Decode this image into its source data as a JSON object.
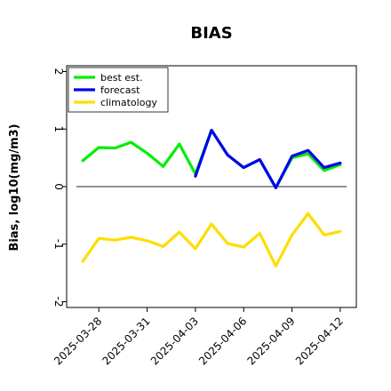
{
  "chart_data": {
    "type": "line",
    "title": "BIAS",
    "xlabel": "",
    "ylabel": "Bias, log10(mg/m3)",
    "ylim": [
      -2.1,
      2.1
    ],
    "yticks": [
      {
        "value": 2,
        "label": "2"
      },
      {
        "value": 1,
        "label": "1"
      },
      {
        "value": 0,
        "label": "0"
      },
      {
        "value": -1,
        "label": "-1"
      },
      {
        "value": -2,
        "label": "-2"
      }
    ],
    "xticks": [
      {
        "value": 1,
        "label": "2025-03-28",
        "color": "#000000"
      },
      {
        "value": 4,
        "label": "2025-03-31",
        "color": "#000000"
      },
      {
        "value": 7,
        "label": "2025-04-03",
        "color": "#228B22"
      },
      {
        "value": 10,
        "label": "2025-04-06",
        "color": "#000000"
      },
      {
        "value": 13,
        "label": "2025-04-09",
        "color": "#000000"
      },
      {
        "value": 16,
        "label": "2025-04-12",
        "color": "#000000"
      }
    ],
    "x_start_date": "2025-03-27",
    "reference_line": 0,
    "grid": false,
    "legend_position": "top-left",
    "series": [
      {
        "name": "best est.",
        "color": "#00ee00",
        "x": [
          0,
          1,
          2,
          3,
          4,
          5,
          6,
          7,
          8,
          9,
          10,
          11,
          12,
          13,
          14,
          15,
          16
        ],
        "values": [
          0.45,
          0.68,
          0.67,
          0.77,
          0.58,
          0.35,
          0.74,
          0.22,
          0.98,
          0.55,
          0.33,
          0.47,
          -0.02,
          0.5,
          0.57,
          0.28,
          0.38
        ]
      },
      {
        "name": "forecast",
        "color": "#0000ee",
        "x": [
          7,
          8,
          9,
          10,
          11,
          12,
          13,
          14,
          15,
          16
        ],
        "values": [
          0.18,
          0.98,
          0.55,
          0.33,
          0.47,
          -0.02,
          0.53,
          0.63,
          0.33,
          0.41
        ]
      },
      {
        "name": "climatology",
        "color": "#ffdd00",
        "x": [
          0,
          1,
          2,
          3,
          4,
          5,
          6,
          7,
          8,
          9,
          10,
          11,
          12,
          13,
          14,
          15,
          16
        ],
        "values": [
          -1.3,
          -0.9,
          -0.93,
          -0.88,
          -0.94,
          -1.04,
          -0.79,
          -1.08,
          -0.65,
          -0.99,
          -1.05,
          -0.81,
          -1.38,
          -0.84,
          -0.47,
          -0.84,
          -0.78
        ]
      }
    ]
  }
}
